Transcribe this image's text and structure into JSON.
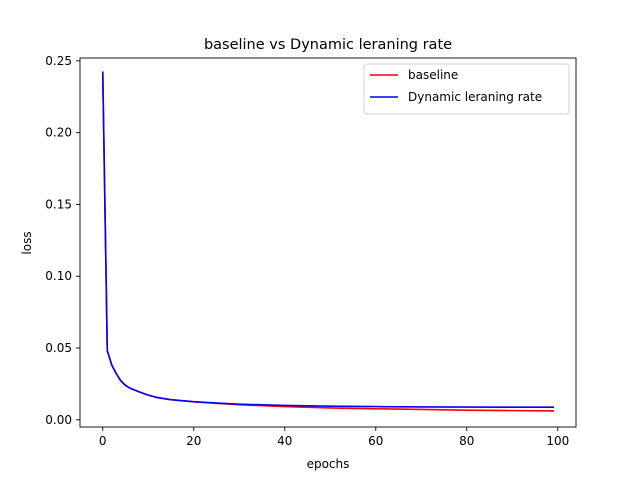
{
  "chart_data": {
    "type": "line",
    "title": "baseline vs Dynamic leraning rate",
    "xlabel": "epochs",
    "ylabel": "loss",
    "xlim": [
      -5,
      104
    ],
    "ylim": [
      -0.005,
      0.252
    ],
    "xticks": [
      0,
      20,
      40,
      60,
      80,
      100
    ],
    "yticks": [
      0.0,
      0.05,
      0.1,
      0.15,
      0.2,
      0.25
    ],
    "ytick_labels": [
      "0.00",
      "0.05",
      "0.10",
      "0.15",
      "0.20",
      "0.25"
    ],
    "grid": false,
    "legend_position": "top-right",
    "series": [
      {
        "name": "baseline",
        "color": "#ff0000",
        "x": [
          0,
          1,
          2,
          3,
          4,
          5,
          6,
          8,
          10,
          12,
          15,
          20,
          25,
          30,
          40,
          50,
          60,
          70,
          80,
          90,
          99
        ],
        "y": [
          0.242,
          0.048,
          0.038,
          0.032,
          0.027,
          0.024,
          0.022,
          0.0195,
          0.0172,
          0.0155,
          0.014,
          0.0125,
          0.0115,
          0.0105,
          0.0092,
          0.0083,
          0.0077,
          0.0072,
          0.0067,
          0.0064,
          0.0062
        ]
      },
      {
        "name": "Dynamic leraning rate",
        "color": "#0000ff",
        "x": [
          0,
          1,
          2,
          3,
          4,
          5,
          6,
          8,
          10,
          12,
          15,
          20,
          25,
          30,
          40,
          50,
          60,
          70,
          80,
          90,
          99
        ],
        "y": [
          0.242,
          0.048,
          0.038,
          0.032,
          0.027,
          0.024,
          0.022,
          0.0195,
          0.0172,
          0.0155,
          0.014,
          0.0126,
          0.0117,
          0.0109,
          0.01,
          0.0095,
          0.0092,
          0.009,
          0.0089,
          0.0088,
          0.0088
        ]
      }
    ]
  }
}
